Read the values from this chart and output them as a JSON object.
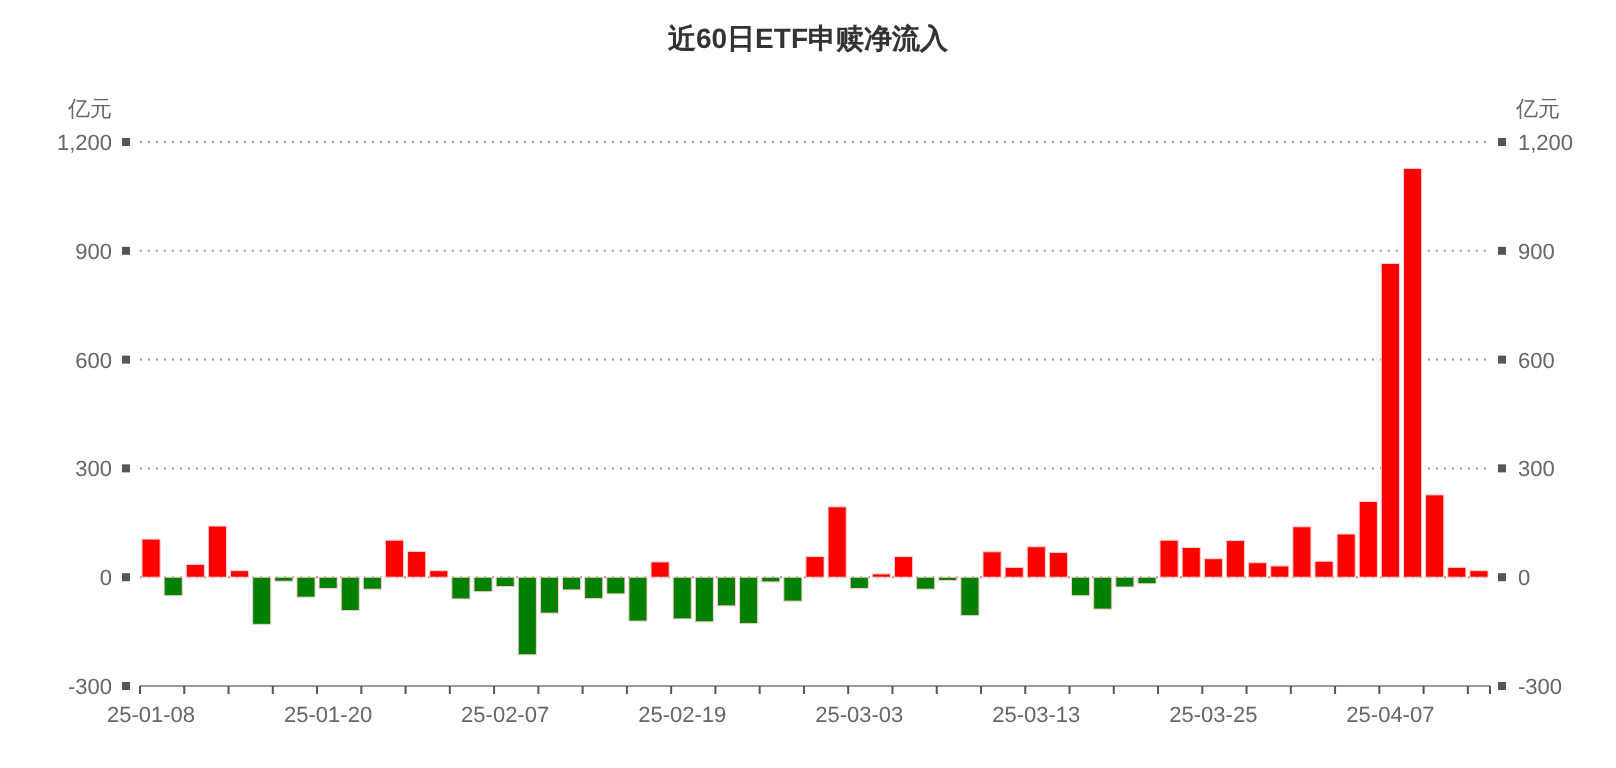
{
  "chart_data": {
    "type": "bar",
    "title": "近60日ETF申赎净流入",
    "ylabel": "亿元",
    "y2label": "亿元",
    "categories": [
      "25-01-08",
      null,
      null,
      null,
      null,
      null,
      null,
      null,
      "25-01-20",
      null,
      null,
      null,
      null,
      null,
      null,
      null,
      "25-02-07",
      null,
      null,
      null,
      null,
      null,
      null,
      null,
      "25-02-19",
      null,
      null,
      null,
      null,
      null,
      null,
      null,
      "25-03-03",
      null,
      null,
      null,
      null,
      null,
      null,
      null,
      "25-03-13",
      null,
      null,
      null,
      null,
      null,
      null,
      null,
      "25-03-25",
      null,
      null,
      null,
      null,
      null,
      null,
      null,
      "25-04-07",
      null,
      null,
      null,
      null
    ],
    "values": [
      105,
      -51,
      35,
      141,
      18,
      -130,
      -11,
      -55,
      -31,
      -92,
      -33,
      102,
      71,
      18,
      -60,
      -40,
      -26,
      -214,
      -99,
      -35,
      -59,
      -46,
      -121,
      42,
      -115,
      -123,
      -79,
      -128,
      -13,
      -66,
      57,
      194,
      -31,
      9,
      57,
      -33,
      -9,
      -106,
      70,
      27,
      84,
      68,
      -51,
      -88,
      -27,
      -18,
      102,
      82,
      51,
      101,
      40,
      31,
      139,
      44,
      119,
      209,
      865,
      1127,
      227,
      27,
      18
    ],
    "colors": [
      "#ff0000",
      "#008000",
      "#ff0000",
      "#ff0000",
      "#ff0000",
      "#008000",
      "#008000",
      "#008000",
      "#008000",
      "#008000",
      "#008000",
      "#ff0000",
      "#ff0000",
      "#ff0000",
      "#008000",
      "#008000",
      "#008000",
      "#008000",
      "#008000",
      "#008000",
      "#008000",
      "#008000",
      "#008000",
      "#ff0000",
      "#008000",
      "#008000",
      "#008000",
      "#008000",
      "#008000",
      "#008000",
      "#ff0000",
      "#ff0000",
      "#008000",
      "#ff0000",
      "#ff0000",
      "#008000",
      "#008000",
      "#008000",
      "#ff0000",
      "#ff0000",
      "#ff0000",
      "#ff0000",
      "#008000",
      "#008000",
      "#008000",
      "#008000",
      "#ff0000",
      "#ff0000",
      "#ff0000",
      "#ff0000",
      "#ff0000",
      "#ff0000",
      "#ff0000",
      "#ff0000",
      "#ff0000",
      "#ff0000",
      "#ff0000",
      "#ff0000",
      "#ff0000",
      "#ff0000",
      "#ff0000"
    ],
    "ylim": [
      -300,
      1200
    ],
    "yticks": [
      -300,
      0,
      300,
      600,
      900,
      {
        "value": 1200,
        "label": "1,200"
      }
    ],
    "y2lim": [
      -300,
      1200
    ],
    "y2ticks": [
      -300,
      0,
      300,
      600,
      900,
      {
        "value": 1200,
        "label": "1,200"
      }
    ],
    "grid": "y"
  }
}
